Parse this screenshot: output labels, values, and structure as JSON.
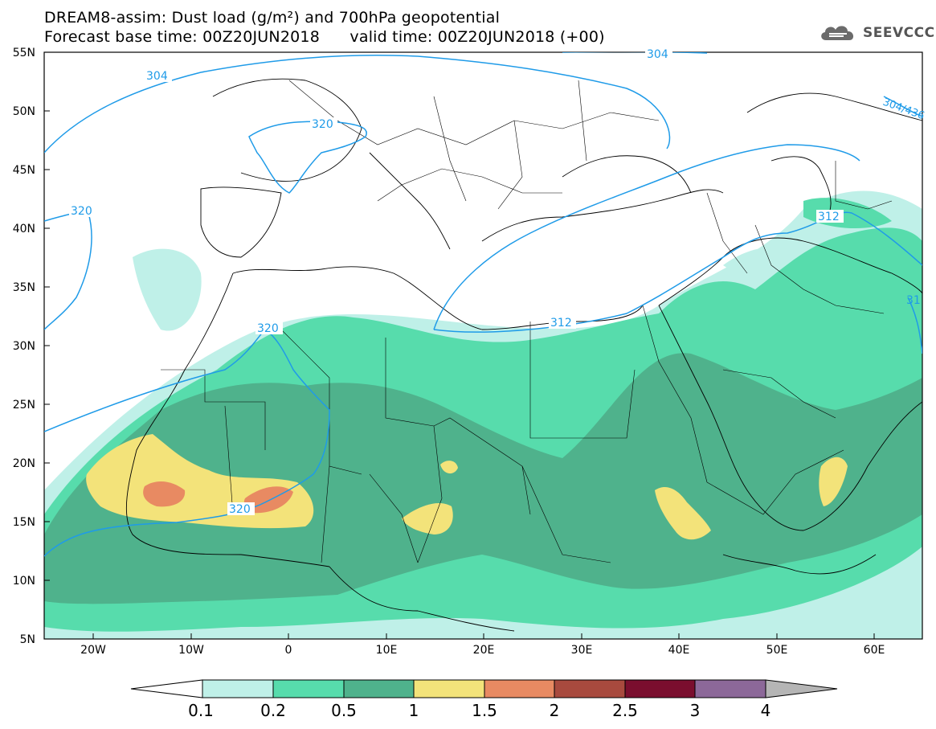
{
  "header": {
    "title_line1": "DREAM8-assim: Dust load (g/m²) and 700hPa geopotential",
    "title_line2": "Forecast base time: 00Z20JUN2018      valid time: 00Z20JUN2018 (+00)",
    "logo_text": "SEEVCCC"
  },
  "map": {
    "lon_range": [
      -25,
      65
    ],
    "lat_range": [
      5,
      55
    ],
    "lat_labels": [
      "55N",
      "50N",
      "45N",
      "40N",
      "35N",
      "30N",
      "25N",
      "20N",
      "15N",
      "10N",
      "5N"
    ],
    "lon_labels": [
      "20W",
      "10W",
      "0",
      "10E",
      "20E",
      "30E",
      "40E",
      "50E",
      "60E"
    ],
    "contour_color": "#1f9be8",
    "contour_labels": [
      "304",
      "320",
      "320",
      "320",
      "320",
      "312",
      "312",
      "304",
      "304/436",
      "31"
    ]
  },
  "legend": {
    "levels": [
      "0.1",
      "0.2",
      "0.5",
      "1",
      "1.5",
      "2",
      "2.5",
      "3",
      "4"
    ],
    "colors": [
      "#ffffff",
      "#bff0e8",
      "#57dcac",
      "#4fb28c",
      "#f3e37a",
      "#e88a62",
      "#a84a3e",
      "#7a0e2e",
      "#8c6899",
      "#b5b5b5"
    ]
  }
}
